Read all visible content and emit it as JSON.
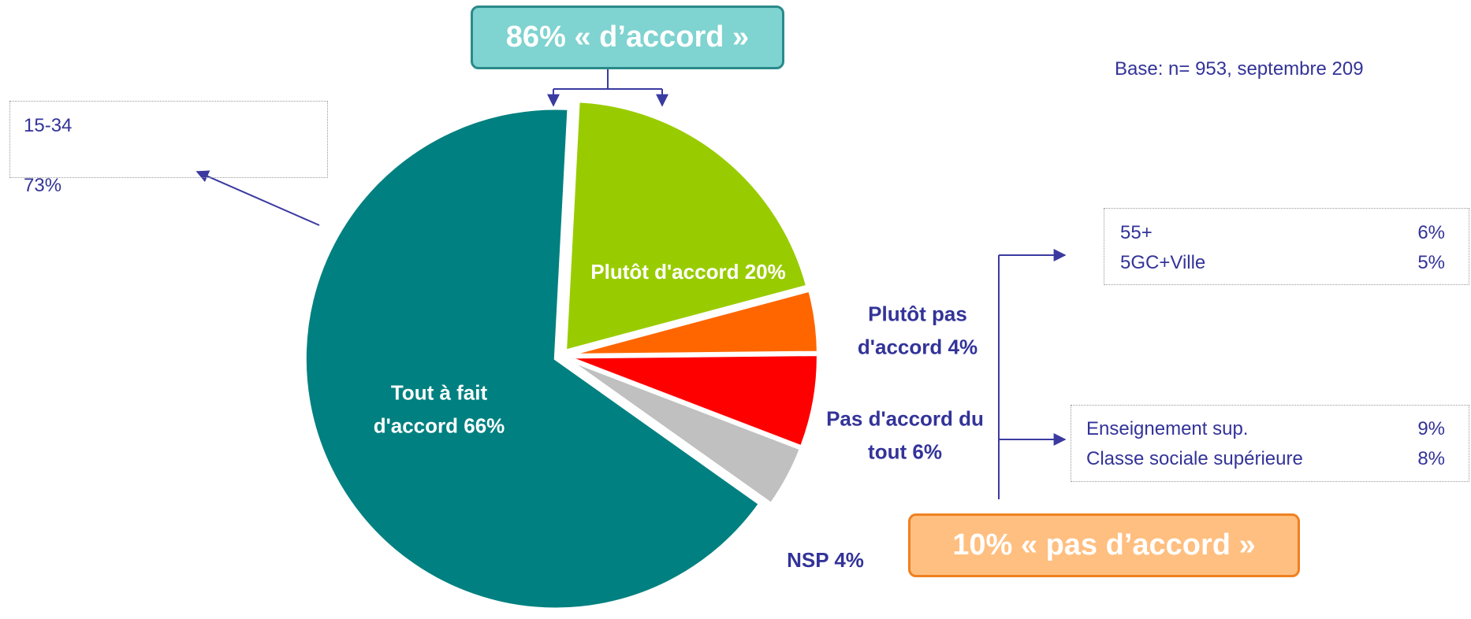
{
  "chart_data": {
    "type": "pie",
    "categories": [
      "Plutôt d'accord",
      "Plutôt pas d'accord",
      "Pas d'accord du tout",
      "NSP",
      "Tout à fait d'accord"
    ],
    "values": [
      20,
      4,
      6,
      4,
      66
    ],
    "value_labels": [
      "20%",
      "4%",
      "6%",
      "4%",
      "66%"
    ],
    "colors": [
      "#99cc00",
      "#ff6600",
      "#ff0000",
      "#c0c0c0",
      "#008080"
    ],
    "annotations": [
      "86% « d’accord »",
      "10% « pas d’accord »",
      "Base: n= 953, septembre 209"
    ],
    "callouts": [
      [
        {
          "label": "15-34",
          "value": "73%"
        }
      ],
      [
        {
          "label": "55+",
          "value": "6%"
        },
        {
          "label": "5GC+Ville",
          "value": "5%"
        }
      ],
      [
        {
          "label": "Enseignement sup.",
          "value": "9%"
        },
        {
          "label": "Classe sociale supérieure",
          "value": "8%"
        }
      ]
    ]
  }
}
